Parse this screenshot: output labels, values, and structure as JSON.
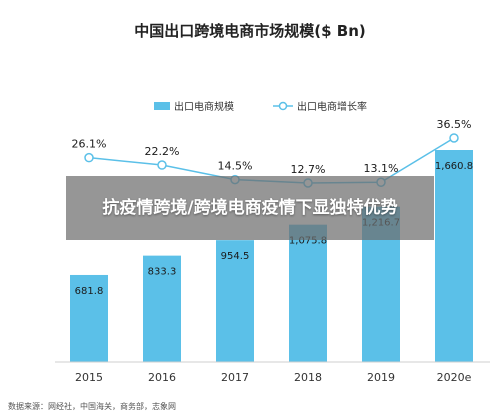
{
  "chart_data": {
    "type": "bar",
    "title": "中国出口跨境电商市场规模($ Bn)",
    "categories": [
      "2015",
      "2016",
      "2017",
      "2018",
      "2019",
      "2020e"
    ],
    "series": [
      {
        "name": "出口电商规模",
        "type": "bar",
        "values": [
          681.8,
          833.3,
          954.5,
          1075.8,
          1216.7,
          1660.8
        ],
        "labels": [
          "681.8",
          "833.3",
          "954.5",
          "1,075.8",
          "1,216.7",
          "1,660.8"
        ],
        "color": "#5bc0e8"
      },
      {
        "name": "出口电商增长率",
        "type": "line",
        "values": [
          26.1,
          22.2,
          14.5,
          12.7,
          13.1,
          36.5
        ],
        "labels": [
          "26.1%",
          "22.2%",
          "14.5%",
          "12.7%",
          "13.1%",
          "36.5%"
        ],
        "color": "#5bc0e8"
      }
    ],
    "legend_position": "top",
    "grid": false
  },
  "overlay_text": "抗疫情跨境/跨境电商疫情下显独特优势",
  "source_text": "数据来源：网经社，中国海关，商务部，志象网"
}
